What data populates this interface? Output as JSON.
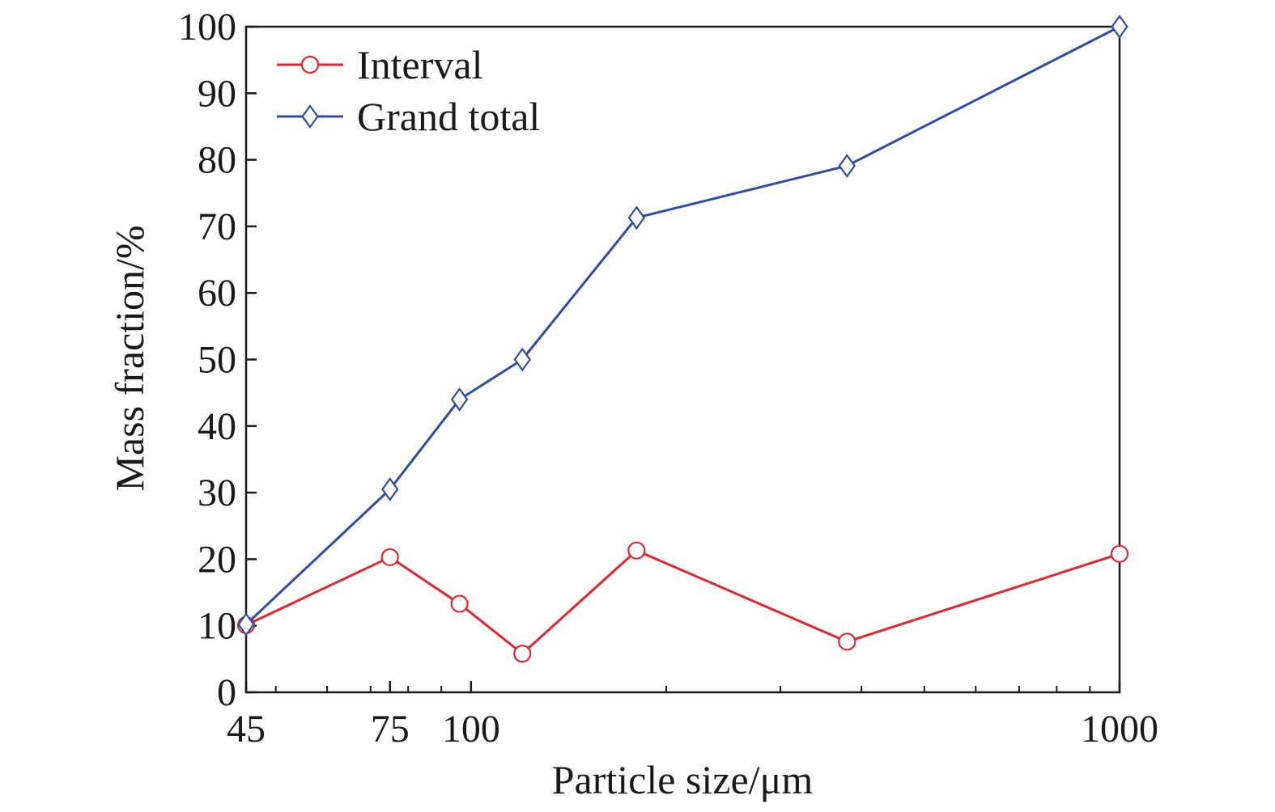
{
  "chart_data": {
    "type": "line",
    "x_scale": "log",
    "xlabel": "Particle size/μm",
    "ylabel": "Mass fraction/%",
    "xlim": [
      45,
      1000
    ],
    "ylim": [
      0,
      100
    ],
    "x_tick_labels": [
      {
        "value": 45,
        "label": "45"
      },
      {
        "value": 75,
        "label": "75"
      },
      {
        "value": 100,
        "label": "100"
      },
      {
        "value": 1000,
        "label": "1000"
      }
    ],
    "x_minor_ticks": [
      50,
      60,
      70,
      80,
      90,
      200,
      300,
      400,
      500,
      600,
      700,
      800,
      900
    ],
    "y_ticks": [
      0,
      10,
      20,
      30,
      40,
      50,
      60,
      70,
      80,
      90,
      100
    ],
    "grid": false,
    "legend_position": "top-left",
    "x": [
      45,
      75,
      96,
      120,
      180,
      380,
      1000
    ],
    "series": [
      {
        "name": "Interval",
        "color": "#e0262e",
        "marker": "circle",
        "values": [
          10.1,
          20.3,
          13.3,
          5.8,
          21.3,
          7.6,
          20.8
        ]
      },
      {
        "name": "Grand total",
        "color": "#2e4da0",
        "marker": "diamond",
        "values": [
          10.2,
          30.5,
          44.0,
          50.0,
          71.3,
          79.1,
          100.0
        ]
      }
    ]
  }
}
